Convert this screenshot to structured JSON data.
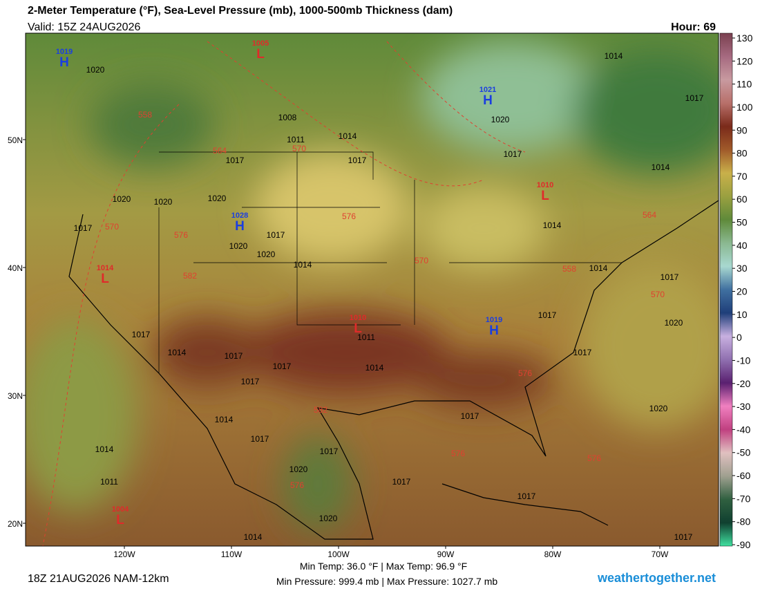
{
  "header": {
    "title": "2-Meter Temperature (°F), Sea-Level Pressure (mb), 1000-500mb Thickness (dam)",
    "valid": "Valid: 15Z 24AUG2026",
    "hour": "Hour: 69"
  },
  "map": {
    "lat_labels": [
      "50N",
      "40N",
      "30N",
      "20N"
    ],
    "lon_labels": [
      "120W",
      "110W",
      "100W",
      "90W",
      "80W",
      "70W"
    ],
    "centers": [
      {
        "kind": "H",
        "value": 1019
      },
      {
        "kind": "L",
        "value": 1005
      },
      {
        "kind": "H",
        "value": 1021
      },
      {
        "kind": "L",
        "value": 1010
      },
      {
        "kind": "H",
        "value": 1028
      },
      {
        "kind": "L",
        "value": 1014
      },
      {
        "kind": "L",
        "value": 1010
      },
      {
        "kind": "H",
        "value": 1019
      },
      {
        "kind": "L",
        "value": 1004
      }
    ],
    "isobar_labels": [
      1020,
      1008,
      1011,
      1014,
      1017,
      1017,
      1020,
      1017,
      1014,
      1017,
      1014,
      1020,
      1020,
      1020,
      1017,
      1017,
      1020,
      1020,
      1014,
      1014,
      1017,
      1017,
      1020,
      1011,
      1014,
      1017,
      1014,
      1017,
      1017,
      1017,
      1017,
      1014,
      1017,
      1017,
      1017,
      1020,
      1017,
      1017,
      1020,
      1020,
      1014,
      1011,
      1014,
      1017,
      1014
    ],
    "thickness_labels": [
      558,
      564,
      570,
      570,
      576,
      576,
      582,
      570,
      558,
      564,
      570,
      576,
      582,
      576,
      576,
      576
    ]
  },
  "colorbar": {
    "ticks": [
      130,
      120,
      110,
      100,
      90,
      80,
      70,
      60,
      50,
      40,
      30,
      20,
      10,
      0,
      -10,
      -20,
      -30,
      -40,
      -50,
      -60,
      -70,
      -80,
      -90
    ],
    "colors": [
      "#7a4050",
      "#a66a80",
      "#c89aa0",
      "#b8706a",
      "#7a2a1a",
      "#a05a2a",
      "#c9b04a",
      "#9aa040",
      "#5f8a3a",
      "#8ab890",
      "#a8d8d0",
      "#4070a0",
      "#1f3f7a",
      "#c8b0e0",
      "#9070b0",
      "#5a2070",
      "#f080c0",
      "#c04080",
      "#e0c0c0",
      "#a0a090",
      "#306040",
      "#104030",
      "#40e0a0"
    ]
  },
  "footer": {
    "run": "18Z 21AUG2026 NAM-12km",
    "temps": "Min Temp:  36.0 °F | Max Temp:  96.9 °F",
    "pressures": "Min Pressure: 999.4 mb | Max Pressure: 1027.7 mb",
    "site": "weathertogether.net"
  }
}
